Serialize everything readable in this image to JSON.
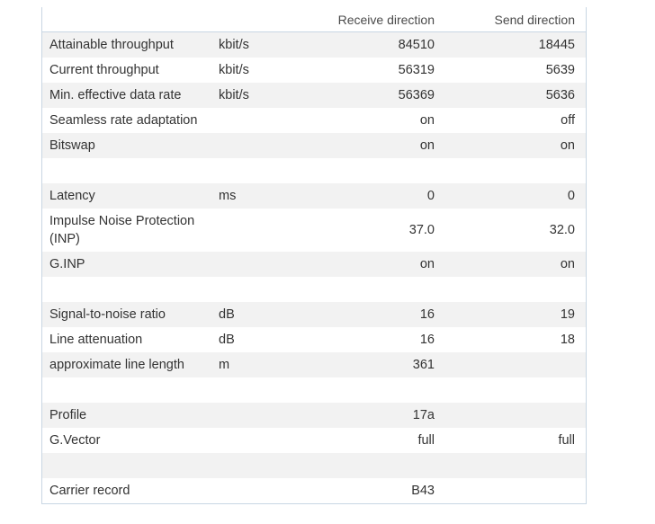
{
  "header": {
    "label": "",
    "unit": "",
    "receive": "Receive direction",
    "send": "Send direction"
  },
  "rows": [
    {
      "label": "Attainable throughput",
      "unit": "kbit/s",
      "receive": "84510",
      "send": "18445"
    },
    {
      "label": "Current throughput",
      "unit": "kbit/s",
      "receive": "56319",
      "send": "5639"
    },
    {
      "label": "Min. effective data rate",
      "unit": "kbit/s",
      "receive": "56369",
      "send": "5636"
    },
    {
      "label": "Seamless rate adaptation",
      "unit": "",
      "receive": "on",
      "send": "off"
    },
    {
      "label": "Bitswap",
      "unit": "",
      "receive": "on",
      "send": "on"
    },
    {
      "label": "",
      "unit": "",
      "receive": "",
      "send": ""
    },
    {
      "label": "Latency",
      "unit": "ms",
      "receive": "0",
      "send": "0"
    },
    {
      "label": "Impulse Noise Protection (INP)",
      "unit": "",
      "receive": "37.0",
      "send": "32.0"
    },
    {
      "label": "G.INP",
      "unit": "",
      "receive": "on",
      "send": "on"
    },
    {
      "label": "",
      "unit": "",
      "receive": "",
      "send": ""
    },
    {
      "label": "Signal-to-noise ratio",
      "unit": "dB",
      "receive": "16",
      "send": "19"
    },
    {
      "label": "Line attenuation",
      "unit": "dB",
      "receive": "16",
      "send": "18"
    },
    {
      "label": "approximate line length",
      "unit": "m",
      "receive": "361",
      "send": ""
    },
    {
      "label": "",
      "unit": "",
      "receive": "",
      "send": ""
    },
    {
      "label": "Profile",
      "unit": "",
      "receive": "17a",
      "send": ""
    },
    {
      "label": "G.Vector",
      "unit": "",
      "receive": "full",
      "send": "full"
    },
    {
      "label": "",
      "unit": "",
      "receive": "",
      "send": ""
    },
    {
      "label": "Carrier record",
      "unit": "",
      "receive": "B43",
      "send": ""
    }
  ]
}
